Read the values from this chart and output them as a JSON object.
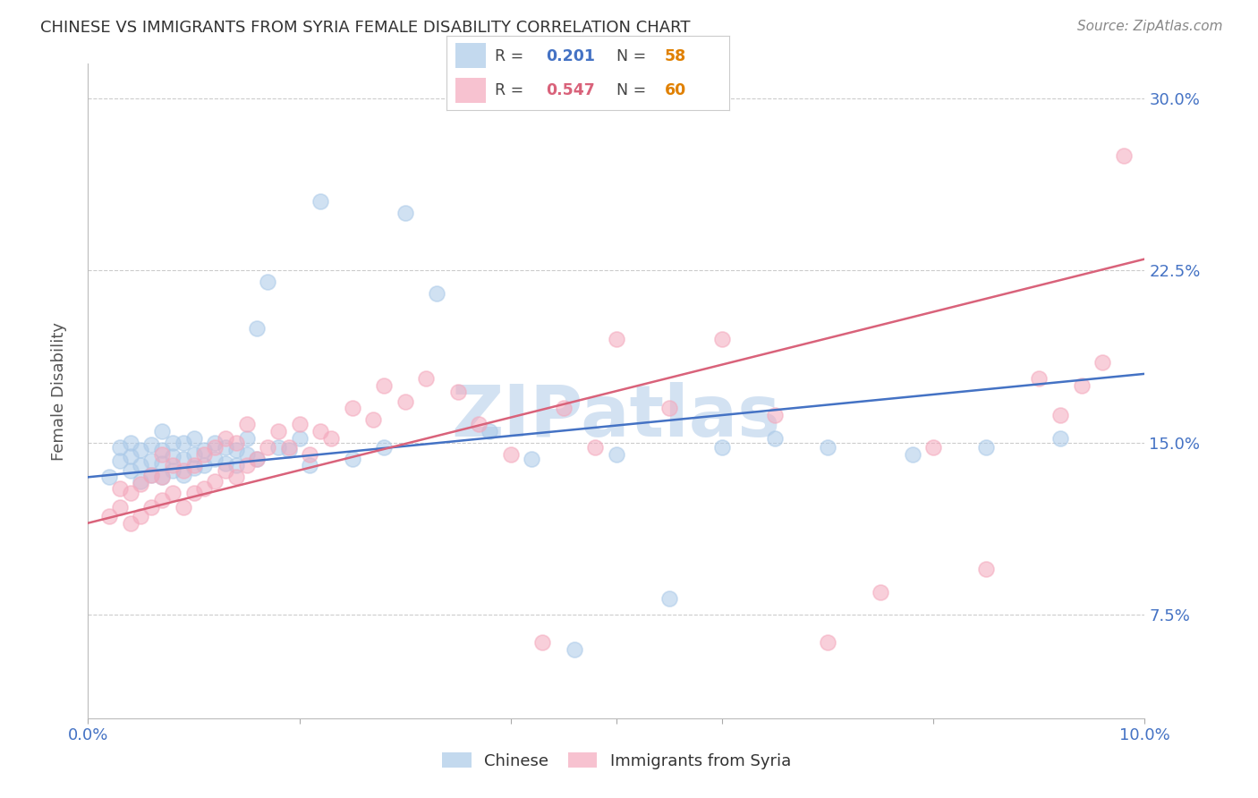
{
  "title": "CHINESE VS IMMIGRANTS FROM SYRIA FEMALE DISABILITY CORRELATION CHART",
  "source": "Source: ZipAtlas.com",
  "ylabel": "Female Disability",
  "ytick_labels": [
    "7.5%",
    "15.0%",
    "22.5%",
    "30.0%"
  ],
  "ytick_values": [
    0.075,
    0.15,
    0.225,
    0.3
  ],
  "xlim": [
    0.0,
    0.1
  ],
  "ylim": [
    0.03,
    0.315
  ],
  "legend_blue_r": "0.201",
  "legend_blue_n": "58",
  "legend_pink_r": "0.547",
  "legend_pink_n": "60",
  "label_blue": "Chinese",
  "label_pink": "Immigrants from Syria",
  "blue_color": "#aac9e8",
  "pink_color": "#f4a8bc",
  "blue_line_color": "#4472c4",
  "pink_line_color": "#d9627a",
  "blue_r_color": "#4472c4",
  "pink_r_color": "#d9627a",
  "n_color": "#e08000",
  "watermark_color": "#ccddf0",
  "watermark": "ZIPatlas",
  "chinese_x": [
    0.002,
    0.003,
    0.003,
    0.004,
    0.004,
    0.004,
    0.005,
    0.005,
    0.005,
    0.006,
    0.006,
    0.006,
    0.007,
    0.007,
    0.007,
    0.007,
    0.008,
    0.008,
    0.008,
    0.009,
    0.009,
    0.009,
    0.01,
    0.01,
    0.01,
    0.011,
    0.011,
    0.012,
    0.012,
    0.013,
    0.013,
    0.014,
    0.014,
    0.015,
    0.015,
    0.016,
    0.016,
    0.017,
    0.018,
    0.019,
    0.02,
    0.021,
    0.022,
    0.025,
    0.028,
    0.03,
    0.033,
    0.038,
    0.042,
    0.046,
    0.05,
    0.055,
    0.06,
    0.065,
    0.07,
    0.078,
    0.085,
    0.092
  ],
  "chinese_y": [
    0.135,
    0.142,
    0.148,
    0.138,
    0.144,
    0.15,
    0.133,
    0.14,
    0.147,
    0.136,
    0.142,
    0.149,
    0.135,
    0.141,
    0.147,
    0.155,
    0.138,
    0.144,
    0.15,
    0.136,
    0.143,
    0.15,
    0.139,
    0.145,
    0.152,
    0.14,
    0.147,
    0.143,
    0.15,
    0.141,
    0.148,
    0.14,
    0.147,
    0.145,
    0.152,
    0.143,
    0.2,
    0.22,
    0.148,
    0.147,
    0.152,
    0.14,
    0.255,
    0.143,
    0.148,
    0.25,
    0.215,
    0.155,
    0.143,
    0.06,
    0.145,
    0.082,
    0.148,
    0.152,
    0.148,
    0.145,
    0.148,
    0.152
  ],
  "syria_x": [
    0.002,
    0.003,
    0.003,
    0.004,
    0.004,
    0.005,
    0.005,
    0.006,
    0.006,
    0.007,
    0.007,
    0.007,
    0.008,
    0.008,
    0.009,
    0.009,
    0.01,
    0.01,
    0.011,
    0.011,
    0.012,
    0.012,
    0.013,
    0.013,
    0.014,
    0.014,
    0.015,
    0.015,
    0.016,
    0.017,
    0.018,
    0.019,
    0.02,
    0.021,
    0.022,
    0.023,
    0.025,
    0.027,
    0.028,
    0.03,
    0.032,
    0.035,
    0.037,
    0.04,
    0.043,
    0.045,
    0.048,
    0.05,
    0.055,
    0.06,
    0.065,
    0.07,
    0.075,
    0.08,
    0.085,
    0.09,
    0.092,
    0.094,
    0.096,
    0.098
  ],
  "syria_y": [
    0.118,
    0.122,
    0.13,
    0.115,
    0.128,
    0.118,
    0.132,
    0.122,
    0.136,
    0.125,
    0.135,
    0.145,
    0.128,
    0.14,
    0.122,
    0.138,
    0.128,
    0.14,
    0.13,
    0.145,
    0.133,
    0.148,
    0.138,
    0.152,
    0.135,
    0.15,
    0.14,
    0.158,
    0.143,
    0.148,
    0.155,
    0.148,
    0.158,
    0.145,
    0.155,
    0.152,
    0.165,
    0.16,
    0.175,
    0.168,
    0.178,
    0.172,
    0.158,
    0.145,
    0.063,
    0.165,
    0.148,
    0.195,
    0.165,
    0.195,
    0.162,
    0.063,
    0.085,
    0.148,
    0.095,
    0.178,
    0.162,
    0.175,
    0.185,
    0.275
  ]
}
